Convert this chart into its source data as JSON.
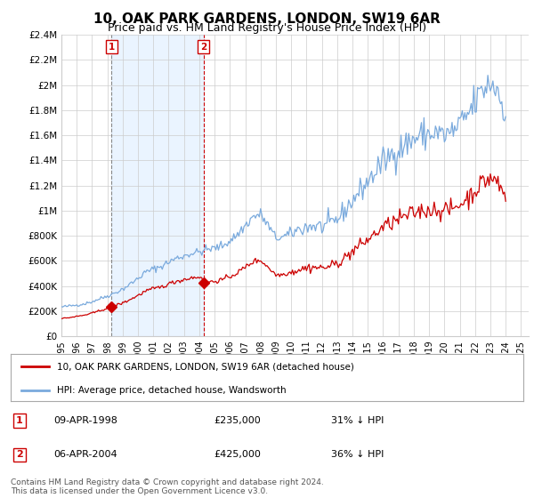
{
  "title": "10, OAK PARK GARDENS, LONDON, SW19 6AR",
  "subtitle": "Price paid vs. HM Land Registry's House Price Index (HPI)",
  "xlim_start": 1995.0,
  "xlim_end": 2025.5,
  "ylim": [
    0,
    2400000
  ],
  "yticks": [
    0,
    200000,
    400000,
    600000,
    800000,
    1000000,
    1200000,
    1400000,
    1600000,
    1800000,
    2000000,
    2200000,
    2400000
  ],
  "ytick_labels": [
    "£0",
    "£200K",
    "£400K",
    "£600K",
    "£800K",
    "£1M",
    "£1.2M",
    "£1.4M",
    "£1.6M",
    "£1.8M",
    "£2M",
    "£2.2M",
    "£2.4M"
  ],
  "xticks": [
    1995,
    1996,
    1997,
    1998,
    1999,
    2000,
    2001,
    2002,
    2003,
    2004,
    2005,
    2006,
    2007,
    2008,
    2009,
    2010,
    2011,
    2012,
    2013,
    2014,
    2015,
    2016,
    2017,
    2018,
    2019,
    2020,
    2021,
    2022,
    2023,
    2024,
    2025
  ],
  "grid_color": "#cccccc",
  "bg_color": "#ffffff",
  "red_color": "#cc0000",
  "blue_color": "#7aaadd",
  "shade_color": "#ddeeff",
  "purchase1_x": 1998.27,
  "purchase1_y": 235000,
  "purchase1_label": "1",
  "purchase1_date": "09-APR-1998",
  "purchase1_price": "£235,000",
  "purchase1_hpi": "31% ↓ HPI",
  "purchase2_x": 2004.27,
  "purchase2_y": 425000,
  "purchase2_label": "2",
  "purchase2_date": "06-APR-2004",
  "purchase2_price": "£425,000",
  "purchase2_hpi": "36% ↓ HPI",
  "legend1_text": "10, OAK PARK GARDENS, LONDON, SW19 6AR (detached house)",
  "legend2_text": "HPI: Average price, detached house, Wandsworth",
  "footer": "Contains HM Land Registry data © Crown copyright and database right 2024.\nThis data is licensed under the Open Government Licence v3.0."
}
